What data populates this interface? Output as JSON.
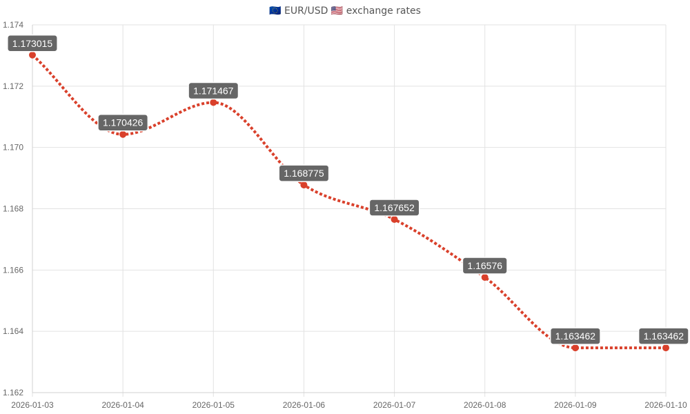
{
  "chart_data": {
    "type": "line",
    "title": "🇪🇺 EUR/USD 🇺🇸 exchange rates",
    "x": [
      "2026-01-03",
      "2026-01-04",
      "2026-01-05",
      "2026-01-06",
      "2026-01-07",
      "2026-01-08",
      "2026-01-09",
      "2026-01-10"
    ],
    "series": [
      {
        "values": [
          1.173015,
          1.170426,
          1.171467,
          1.168775,
          1.167652,
          1.16576,
          1.163462,
          1.163462
        ],
        "labels": [
          "1.173015",
          "1.170426",
          "1.171467",
          "1.168775",
          "1.167652",
          "1.16576",
          "1.163462",
          "1.163462"
        ],
        "color": "#d9402b"
      }
    ],
    "ylim": [
      1.162,
      1.174
    ],
    "yticks": [
      "1.174",
      "1.172",
      "1.170",
      "1.168",
      "1.166",
      "1.164",
      "1.162"
    ],
    "grid": true,
    "line_style": "dotted",
    "data_label_bg": "#666666"
  }
}
